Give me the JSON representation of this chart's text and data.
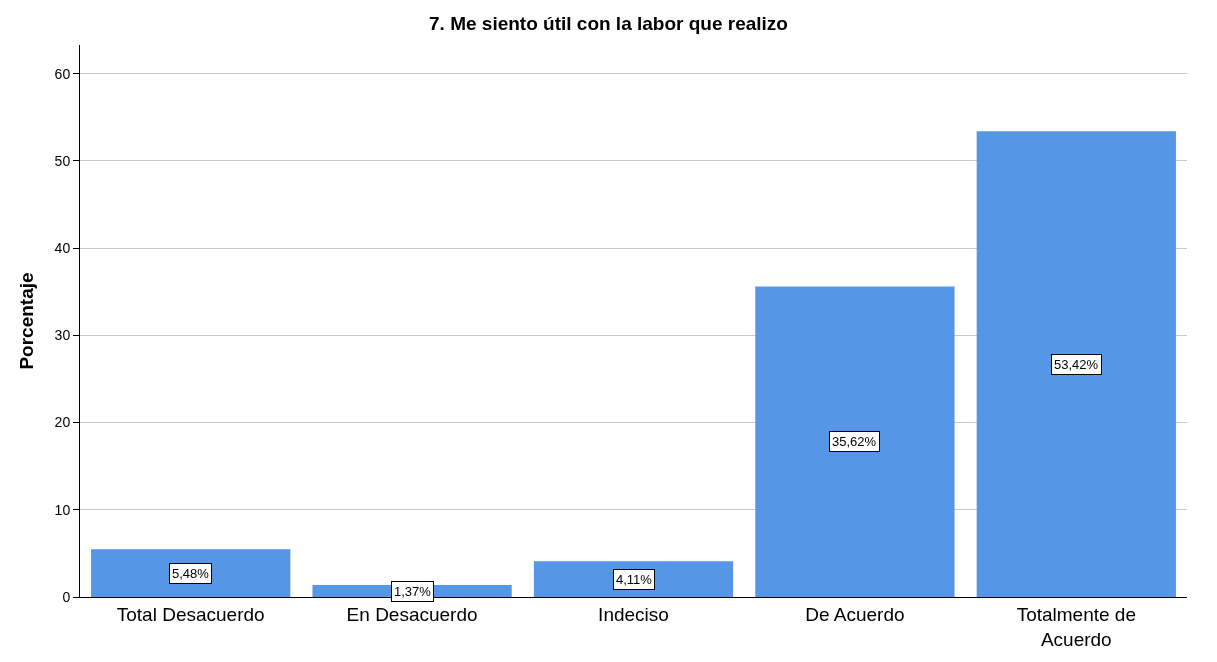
{
  "chart_data": {
    "type": "bar",
    "title": "7. Me siento útil con la labor que realizo",
    "ylabel": "Porcentaje",
    "categories": [
      "Total Desacuerdo",
      "En Desacuerdo",
      "Indeciso",
      "De Acuerdo",
      "Totalmente de\nAcuerdo"
    ],
    "values": [
      5.48,
      1.37,
      4.11,
      35.62,
      53.42
    ],
    "value_labels": [
      "5,48%",
      "1,37%",
      "4,11%",
      "35,62%",
      "53,42%"
    ],
    "color": "#5596e6",
    "ylim": [
      0,
      63.3
    ],
    "yticks": [
      0,
      10,
      20,
      30,
      40,
      50,
      60
    ],
    "grid": "y"
  }
}
